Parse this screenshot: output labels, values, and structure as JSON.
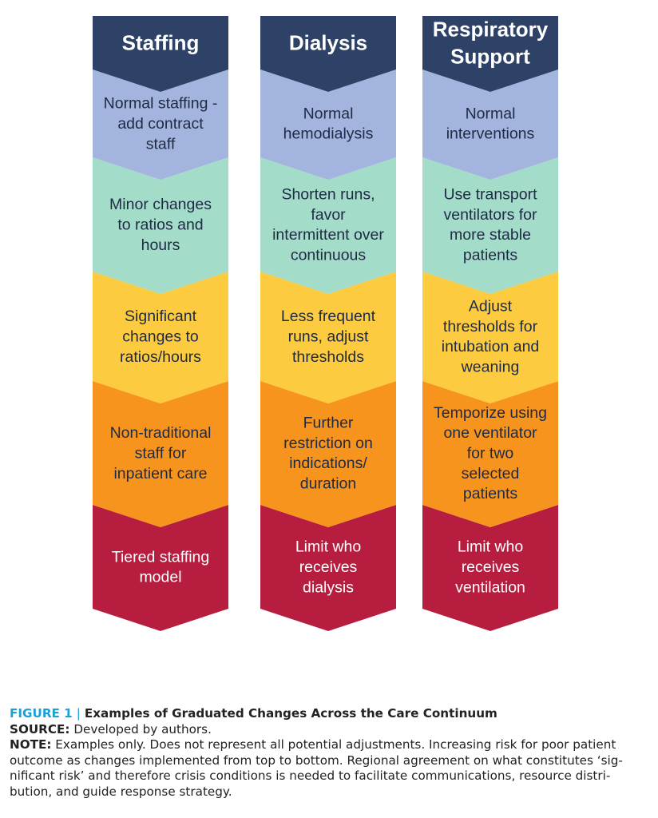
{
  "columns": [
    {
      "title": [
        "Staffing"
      ],
      "tiers": [
        [
          "Normal staffing -",
          "add contract",
          "staff"
        ],
        [
          "Minor changes",
          "to ratios and",
          "hours"
        ],
        [
          "Significant",
          "changes to",
          "ratios/hours"
        ],
        [
          "Non-traditional",
          "staff for",
          "inpatient care"
        ],
        [
          "Tiered staffing",
          "model"
        ]
      ]
    },
    {
      "title": [
        "Dialysis"
      ],
      "tiers": [
        [
          "Normal",
          "hemodialysis"
        ],
        [
          "Shorten runs,",
          "favor",
          "intermittent over",
          "continuous"
        ],
        [
          "Less frequent",
          "runs, adjust",
          "thresholds"
        ],
        [
          "Further",
          "restriction on",
          "indications/",
          "duration"
        ],
        [
          "Limit who",
          "receives",
          "dialysis"
        ]
      ]
    },
    {
      "title": [
        "Respiratory",
        "Support"
      ],
      "tiers": [
        [
          "Normal",
          "interventions"
        ],
        [
          "Use transport",
          "ventilators for",
          "more stable",
          "patients"
        ],
        [
          "Adjust",
          "thresholds for",
          "intubation and",
          "weaning"
        ],
        [
          "Temporize using",
          "one ventilator",
          "for two",
          "selected",
          "patients"
        ],
        [
          "Limit who",
          "receives",
          "ventilation"
        ]
      ]
    }
  ],
  "colors": {
    "header": "#2e4166",
    "tiers": [
      "#a3b4de",
      "#a3dcc8",
      "#fdcb3f",
      "#f6941e",
      "#b71d3f"
    ],
    "tier_text": [
      "#1f2a44",
      "#1f2a44",
      "#1f2a44",
      "#1f2a44",
      "#ffffff"
    ],
    "accent": "#1aa0d8"
  },
  "caption": {
    "figure_label": "FIGURE 1",
    "separator": "|",
    "title": "Examples of Graduated Changes Across the Care Continuum",
    "source_label": "SOURCE:",
    "source_text": "Developed by authors.",
    "note_label": "NOTE:",
    "note_lines": [
      "Examples only. Does not represent all potential adjustments. Increasing risk for poor patient",
      "outcome as changes implemented from top to bottom. Regional agreement on what constitutes ‘sig-",
      "nificant risk’ and therefore crisis conditions is needed to facilitate communications, resource distri-",
      "bution, and guide response strategy."
    ]
  }
}
